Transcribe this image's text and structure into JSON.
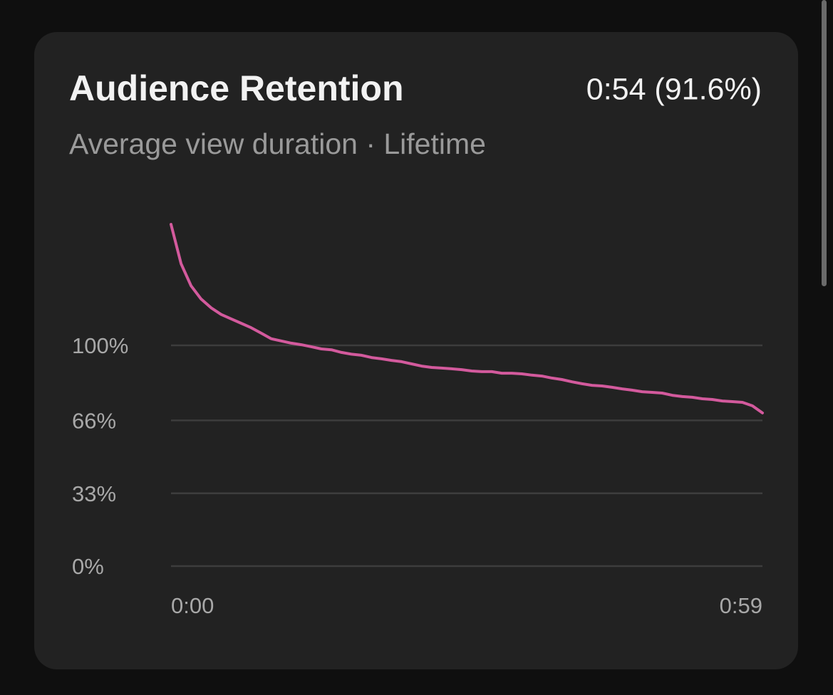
{
  "chart_data": {
    "type": "line",
    "title": "Audience Retention",
    "headline": "0:54 (91.6%)",
    "subtitle": "Average view duration · Lifetime",
    "x": [
      0,
      1,
      2,
      3,
      4,
      5,
      6,
      7,
      8,
      9,
      10,
      11,
      12,
      13,
      14,
      15,
      16,
      17,
      18,
      19,
      20,
      21,
      22,
      23,
      24,
      25,
      26,
      27,
      28,
      29,
      30,
      31,
      32,
      33,
      34,
      35,
      36,
      37,
      38,
      39,
      40,
      41,
      42,
      43,
      44,
      45,
      46,
      47,
      48,
      49,
      50,
      51,
      52,
      53,
      54,
      55,
      56,
      57,
      58,
      59
    ],
    "series": [
      {
        "color": "#d35a9d",
        "values": [
          154.8,
          137,
          127,
          121,
          117,
          114,
          112,
          110,
          108,
          105.5,
          103,
          102,
          101,
          100.3,
          99.4,
          98.4,
          98,
          96.8,
          96,
          95.5,
          94.5,
          93.9,
          93.2,
          92.6,
          91.6,
          90.6,
          90,
          89.7,
          89.4,
          89,
          88.4,
          88.1,
          88.1,
          87.4,
          87.4,
          87.1,
          86.5,
          86.1,
          85.2,
          84.5,
          83.5,
          82.6,
          81.9,
          81.6,
          81,
          80.3,
          79.7,
          79,
          78.7,
          78.4,
          77.4,
          76.8,
          76.5,
          75.8,
          75.5,
          74.8,
          74.5,
          74.2,
          72.6,
          69.4
        ]
      }
    ],
    "xlim": [
      0,
      59
    ],
    "xticks": [
      {
        "value": 0,
        "label": "0:00"
      },
      {
        "value": 59,
        "label": "0:59"
      }
    ],
    "ylim": [
      0,
      160
    ],
    "yticks": [
      {
        "value": 0,
        "label": "0%"
      },
      {
        "value": 33,
        "label": "33%"
      },
      {
        "value": 66,
        "label": "66%"
      },
      {
        "value": 100,
        "label": "100%"
      }
    ],
    "grid": true
  }
}
